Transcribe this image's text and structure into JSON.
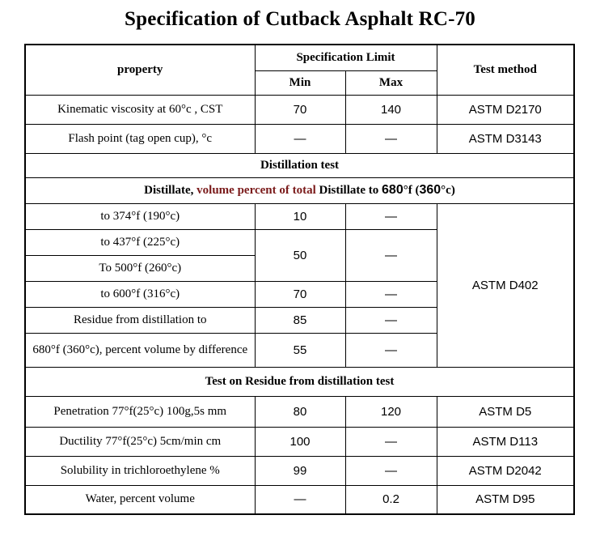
{
  "title": "Specification of Cutback Asphalt RC-70",
  "header": {
    "property": "property",
    "spec_limit": "Specification Limit",
    "min": "Min",
    "max": "Max",
    "test_method": "Test method"
  },
  "rows_top": [
    {
      "property": "Kinematic viscosity at 60°c , CST",
      "min": "70",
      "max": "140",
      "method": "ASTM D2170"
    },
    {
      "property": "Flash point (tag open cup), °c",
      "min": "—",
      "max": "—",
      "method": "ASTM D3143"
    }
  ],
  "distillation": {
    "section_title": "Distillation test",
    "subtitle": {
      "p1": "Distillate, ",
      "p2": "volume percent of total ",
      "p3": "Distillate to ",
      "t1": "680",
      "p4": "°f (",
      "t2": "360",
      "p5": "°c)"
    },
    "row1": {
      "property": "to 374°f (190°c)",
      "min": "10",
      "max": "—"
    },
    "row2": {
      "property": "to 437°f (225°c)"
    },
    "row3": {
      "property": "To 500°f (260°c)"
    },
    "merged": {
      "min": "50",
      "max": "—"
    },
    "row4": {
      "property": "to 600°f (316°c)",
      "min": "70",
      "max": "—"
    },
    "row5": {
      "property": "Residue from distillation to",
      "min": "85",
      "max": "—"
    },
    "row6": {
      "property": "680°f (360°c), percent volume by difference",
      "min": "55",
      "max": "—"
    },
    "method": "ASTM D402"
  },
  "residue": {
    "section_title": "Test on Residue from distillation test",
    "rows": [
      {
        "property": "Penetration 77°f(25°c) 100g,5s mm",
        "min": "80",
        "max": "120",
        "method": "ASTM D5"
      },
      {
        "property": "Ductility 77°f(25°c) 5cm/min cm",
        "min": "100",
        "max": "—",
        "method": "ASTM D113"
      },
      {
        "property": "Solubility in trichloroethylene %",
        "min": "99",
        "max": "—",
        "method": "ASTM D2042"
      },
      {
        "property": "Water, percent volume",
        "min": "—",
        "max": "0.2",
        "method": "ASTM D95"
      }
    ]
  }
}
